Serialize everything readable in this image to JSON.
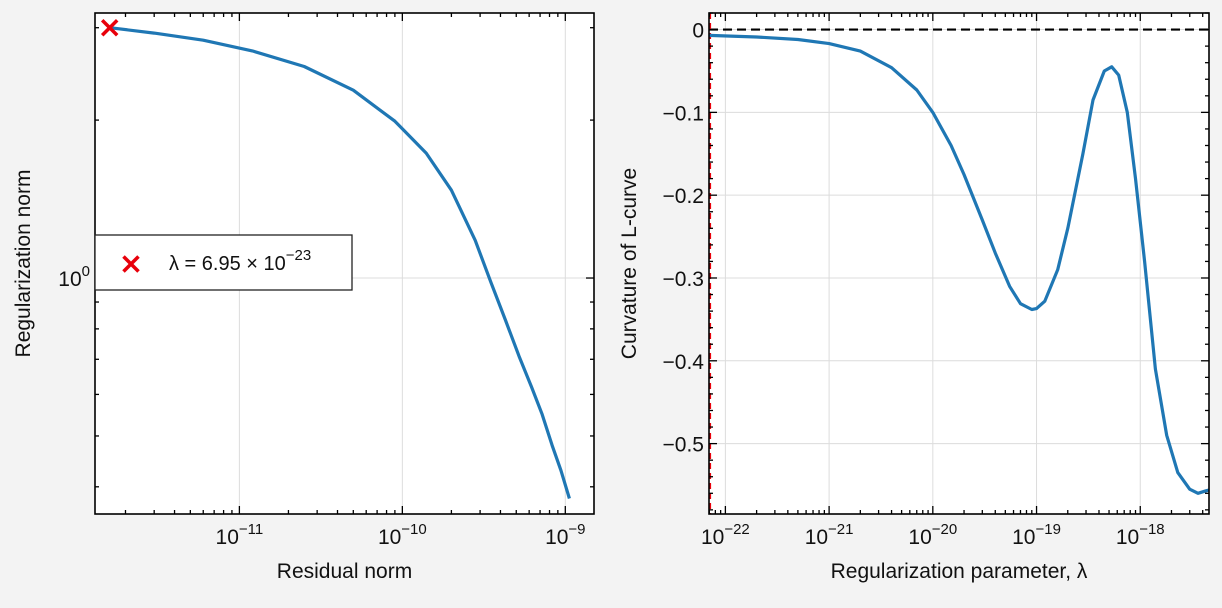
{
  "chart_data": [
    {
      "type": "line",
      "xscale": "log",
      "yscale": "log",
      "xlabel": "Residual norm",
      "ylabel": "Regularization norm",
      "xlim": [
        1.3e-12,
        1.5e-09
      ],
      "ylim": [
        0.355,
        3.2
      ],
      "x_tick_labels": [
        {
          "value": 1e-11,
          "mantissa": "10",
          "exponent": "−11"
        },
        {
          "value": 1e-10,
          "mantissa": "10",
          "exponent": "−10"
        },
        {
          "value": 1e-09,
          "mantissa": "10",
          "exponent": "−9"
        }
      ],
      "y_tick_labels": [
        {
          "value": 1,
          "mantissa": "10",
          "exponent": "0"
        }
      ],
      "grid": true,
      "series": [
        {
          "color": "#1f77b4",
          "x": [
            1.6e-12,
            3e-12,
            6e-12,
            1.2e-11,
            2.5e-11,
            5e-11,
            9e-11,
            1.4e-10,
            2e-10,
            2.8e-10,
            3.5e-10,
            4.3e-10,
            5.2e-10,
            6.2e-10,
            7.2e-10,
            8.3e-10,
            9.4e-10,
            1.06e-09
          ],
          "y": [
            3.0,
            2.93,
            2.84,
            2.71,
            2.53,
            2.28,
            1.99,
            1.73,
            1.47,
            1.18,
            0.98,
            0.83,
            0.71,
            0.62,
            0.55,
            0.48,
            0.43,
            0.38
          ]
        }
      ],
      "marker": {
        "x": 1.6e-12,
        "y": 3.0,
        "symbol": "x",
        "color": "#e8000b"
      },
      "legend": {
        "position": "center-left",
        "entries": [
          {
            "symbol": "x",
            "color": "#e8000b",
            "label_prefix": "λ = 6.95 × 10",
            "label_exponent": "−23"
          }
        ]
      }
    },
    {
      "type": "line",
      "xscale": "log",
      "yscale": "linear",
      "xlabel": "Regularization parameter, λ",
      "ylabel": "Curvature of L-curve",
      "xlim": [
        6.95e-23,
        4.6e-18
      ],
      "ylim": [
        -0.585,
        0.02
      ],
      "x_tick_labels": [
        {
          "value": 1e-22,
          "mantissa": "10",
          "exponent": "−22"
        },
        {
          "value": 1e-21,
          "mantissa": "10",
          "exponent": "−21"
        },
        {
          "value": 1e-20,
          "mantissa": "10",
          "exponent": "−20"
        },
        {
          "value": 1e-19,
          "mantissa": "10",
          "exponent": "−19"
        },
        {
          "value": 1e-18,
          "mantissa": "10",
          "exponent": "−18"
        }
      ],
      "y_tick_labels": [
        {
          "value": 0,
          "label": "0"
        },
        {
          "value": -0.1,
          "label": "−0.1"
        },
        {
          "value": -0.2,
          "label": "−0.2"
        },
        {
          "value": -0.3,
          "label": "−0.3"
        },
        {
          "value": -0.4,
          "label": "−0.4"
        },
        {
          "value": -0.5,
          "label": "−0.5"
        }
      ],
      "grid": true,
      "series": [
        {
          "color": "#1f77b4",
          "x": [
            6.95e-23,
            2e-22,
            5e-22,
            1e-21,
            2e-21,
            4e-21,
            7e-21,
            1e-20,
            1.5e-20,
            2e-20,
            3e-20,
            4e-20,
            5.5e-20,
            7e-20,
            9e-20,
            1e-19,
            1.2e-19,
            1.6e-19,
            2e-19,
            2.8e-19,
            3.5e-19,
            4.5e-19,
            5.3e-19,
            6.2e-19,
            7.5e-19,
            9e-19,
            1.1e-18,
            1.4e-18,
            1.8e-18,
            2.3e-18,
            3e-18,
            3.6e-18,
            4.3e-18,
            4.6e-18
          ],
          "y": [
            -0.007,
            -0.009,
            -0.012,
            -0.017,
            -0.026,
            -0.046,
            -0.073,
            -0.1,
            -0.14,
            -0.175,
            -0.23,
            -0.27,
            -0.31,
            -0.331,
            -0.338,
            -0.337,
            -0.328,
            -0.29,
            -0.24,
            -0.15,
            -0.085,
            -0.05,
            -0.045,
            -0.055,
            -0.1,
            -0.18,
            -0.28,
            -0.41,
            -0.49,
            -0.535,
            -0.555,
            -0.56,
            -0.557,
            -0.556
          ]
        }
      ],
      "reference_lines": [
        {
          "orientation": "horizontal",
          "y": 0,
          "style": "dashed",
          "color": "#000000"
        },
        {
          "orientation": "vertical",
          "x": 6.95e-23,
          "style": "dashed",
          "color": "#e8000b"
        }
      ]
    }
  ]
}
